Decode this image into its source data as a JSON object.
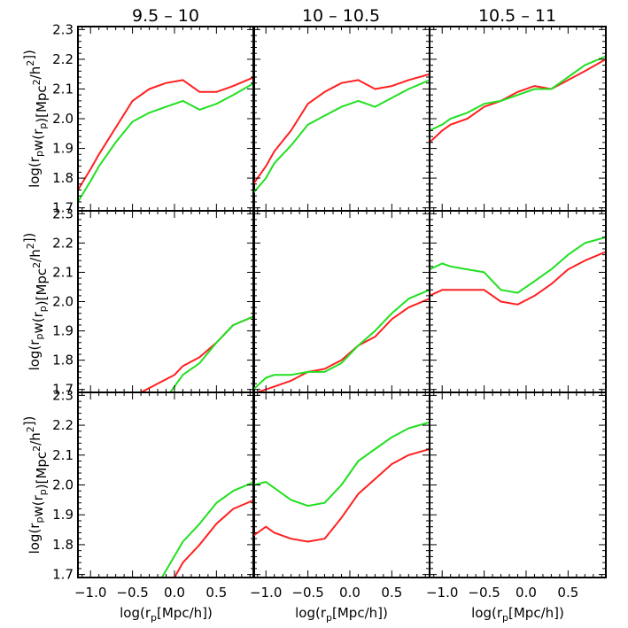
{
  "chart_data": {
    "type": "line",
    "layout": "3x3 grid of panels, shared axes",
    "column_titles": [
      "9.5  –  10",
      "10  –  10.5",
      "10.5  –  11"
    ],
    "xlabel": {
      "pre": "log(r",
      "sub": "p",
      "post": "[Mpc/h])"
    },
    "ylabel": "log(rₚd w(rₚ)[Mpc²/h²])",
    "xlim": [
      -1.15,
      0.95
    ],
    "ylim": [
      1.69,
      2.31
    ],
    "xticks": [
      -1.0,
      -0.5,
      0.0,
      0.5
    ],
    "xtick_labels": [
      "−1.0",
      "−0.5",
      "0.0",
      "0.5"
    ],
    "yticks": [
      1.7,
      1.8,
      1.9,
      2.0,
      2.1,
      2.2,
      2.3
    ],
    "ytick_labels": [
      "1.7",
      "1.8",
      "1.9",
      "2.0",
      "2.1",
      "2.2",
      "2.3"
    ],
    "grid": false,
    "series_colors": {
      "red": "#ff2020",
      "green": "#20e020"
    },
    "panels": [
      {
        "row": 0,
        "col": 0,
        "series": [
          {
            "color": "red",
            "x": [
              -1.15,
              -1.0,
              -0.9,
              -0.7,
              -0.5,
              -0.3,
              -0.1,
              0.1,
              0.3,
              0.5,
              0.7,
              0.95
            ],
            "y": [
              1.76,
              1.83,
              1.88,
              1.97,
              2.06,
              2.1,
              2.12,
              2.13,
              2.09,
              2.09,
              2.11,
              2.14
            ]
          },
          {
            "color": "green",
            "x": [
              -1.15,
              -1.0,
              -0.9,
              -0.7,
              -0.5,
              -0.3,
              -0.1,
              0.1,
              0.3,
              0.5,
              0.7,
              0.95
            ],
            "y": [
              1.72,
              1.79,
              1.84,
              1.92,
              1.99,
              2.02,
              2.04,
              2.06,
              2.03,
              2.05,
              2.08,
              2.12
            ]
          }
        ]
      },
      {
        "row": 0,
        "col": 1,
        "series": [
          {
            "color": "red",
            "x": [
              -1.15,
              -1.0,
              -0.9,
              -0.7,
              -0.5,
              -0.3,
              -0.1,
              0.1,
              0.3,
              0.5,
              0.7,
              0.95
            ],
            "y": [
              1.78,
              1.84,
              1.89,
              1.96,
              2.05,
              2.09,
              2.12,
              2.13,
              2.1,
              2.11,
              2.13,
              2.15
            ]
          },
          {
            "color": "green",
            "x": [
              -1.15,
              -1.0,
              -0.9,
              -0.7,
              -0.5,
              -0.3,
              -0.1,
              0.1,
              0.3,
              0.5,
              0.7,
              0.95
            ],
            "y": [
              1.75,
              1.8,
              1.85,
              1.91,
              1.98,
              2.01,
              2.04,
              2.06,
              2.04,
              2.07,
              2.1,
              2.13
            ]
          }
        ]
      },
      {
        "row": 0,
        "col": 2,
        "series": [
          {
            "color": "red",
            "x": [
              -1.15,
              -1.0,
              -0.9,
              -0.7,
              -0.5,
              -0.3,
              -0.1,
              0.1,
              0.3,
              0.5,
              0.7,
              0.95
            ],
            "y": [
              1.92,
              1.96,
              1.98,
              2.0,
              2.04,
              2.06,
              2.09,
              2.11,
              2.1,
              2.13,
              2.16,
              2.2
            ]
          },
          {
            "color": "green",
            "x": [
              -1.15,
              -1.0,
              -0.9,
              -0.7,
              -0.5,
              -0.3,
              -0.1,
              0.1,
              0.3,
              0.5,
              0.7,
              0.95
            ],
            "y": [
              1.96,
              1.98,
              2.0,
              2.02,
              2.05,
              2.06,
              2.08,
              2.1,
              2.1,
              2.14,
              2.18,
              2.21
            ]
          }
        ]
      },
      {
        "row": 1,
        "col": 0,
        "series": [
          {
            "color": "red",
            "x": [
              -0.4,
              -0.2,
              0.0,
              0.1,
              0.3,
              0.5,
              0.7,
              0.95
            ],
            "y": [
              1.69,
              1.72,
              1.75,
              1.78,
              1.81,
              1.86,
              1.92,
              1.95
            ]
          },
          {
            "color": "green",
            "x": [
              -0.05,
              0.1,
              0.3,
              0.5,
              0.7,
              0.95
            ],
            "y": [
              1.69,
              1.75,
              1.79,
              1.86,
              1.92,
              1.95
            ]
          }
        ]
      },
      {
        "row": 1,
        "col": 1,
        "series": [
          {
            "color": "red",
            "x": [
              -1.1,
              -1.0,
              -0.9,
              -0.7,
              -0.5,
              -0.3,
              -0.1,
              0.1,
              0.3,
              0.5,
              0.7,
              0.95
            ],
            "y": [
              1.69,
              1.7,
              1.71,
              1.73,
              1.76,
              1.77,
              1.8,
              1.85,
              1.88,
              1.94,
              1.98,
              2.01
            ]
          },
          {
            "color": "green",
            "x": [
              -1.15,
              -1.0,
              -0.9,
              -0.7,
              -0.5,
              -0.3,
              -0.1,
              0.1,
              0.3,
              0.5,
              0.7,
              0.95
            ],
            "y": [
              1.7,
              1.74,
              1.75,
              1.75,
              1.76,
              1.76,
              1.79,
              1.85,
              1.9,
              1.96,
              2.01,
              2.04
            ]
          }
        ]
      },
      {
        "row": 1,
        "col": 2,
        "series": [
          {
            "color": "red",
            "x": [
              -1.15,
              -1.0,
              -0.9,
              -0.7,
              -0.5,
              -0.3,
              -0.1,
              0.1,
              0.3,
              0.5,
              0.7,
              0.95
            ],
            "y": [
              2.02,
              2.04,
              2.04,
              2.04,
              2.04,
              2.0,
              1.99,
              2.02,
              2.06,
              2.11,
              2.14,
              2.17
            ]
          },
          {
            "color": "green",
            "x": [
              -1.15,
              -1.0,
              -0.9,
              -0.7,
              -0.5,
              -0.3,
              -0.1,
              0.1,
              0.3,
              0.5,
              0.7,
              0.95
            ],
            "y": [
              2.11,
              2.13,
              2.12,
              2.11,
              2.1,
              2.04,
              2.03,
              2.07,
              2.11,
              2.16,
              2.2,
              2.22
            ]
          }
        ]
      },
      {
        "row": 2,
        "col": 0,
        "series": [
          {
            "color": "red",
            "x": [
              0.0,
              0.1,
              0.3,
              0.5,
              0.7,
              0.95
            ],
            "y": [
              1.69,
              1.74,
              1.8,
              1.87,
              1.92,
              1.95
            ]
          },
          {
            "color": "green",
            "x": [
              -0.15,
              0.1,
              0.3,
              0.5,
              0.7,
              0.95
            ],
            "y": [
              1.69,
              1.81,
              1.87,
              1.94,
              1.98,
              2.01
            ]
          }
        ]
      },
      {
        "row": 2,
        "col": 1,
        "series": [
          {
            "color": "red",
            "x": [
              -1.15,
              -1.0,
              -0.9,
              -0.7,
              -0.5,
              -0.3,
              -0.1,
              0.1,
              0.3,
              0.5,
              0.7,
              0.95
            ],
            "y": [
              1.83,
              1.86,
              1.84,
              1.82,
              1.81,
              1.82,
              1.89,
              1.97,
              2.02,
              2.07,
              2.1,
              2.12
            ]
          },
          {
            "color": "green",
            "x": [
              -1.15,
              -1.0,
              -0.9,
              -0.7,
              -0.5,
              -0.3,
              -0.1,
              0.1,
              0.3,
              0.5,
              0.7,
              0.95
            ],
            "y": [
              2.0,
              2.01,
              1.99,
              1.95,
              1.93,
              1.94,
              2.0,
              2.08,
              2.12,
              2.16,
              2.19,
              2.21
            ]
          }
        ]
      },
      {
        "row": 2,
        "col": 2,
        "series": []
      }
    ]
  }
}
